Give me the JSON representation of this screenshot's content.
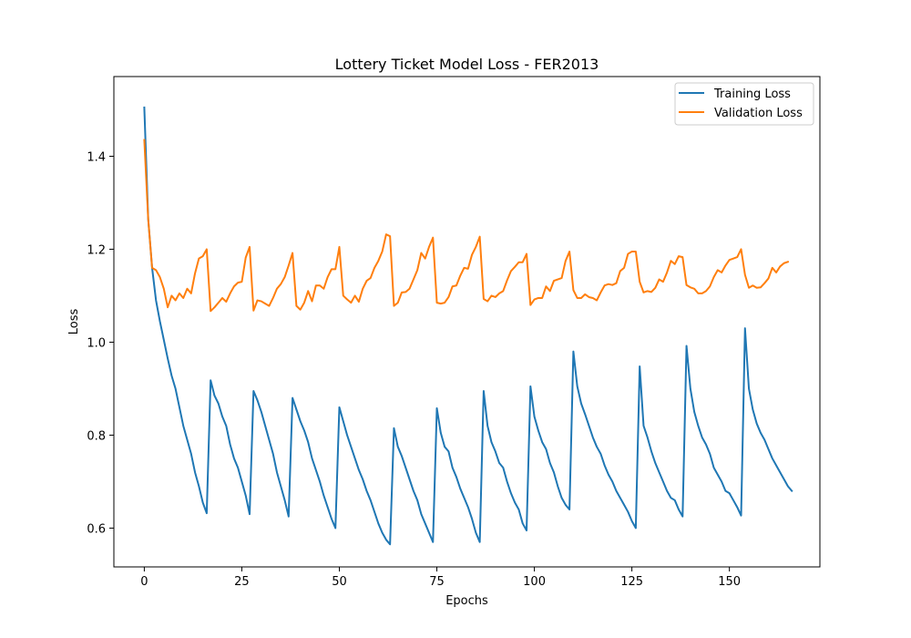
{
  "chart_data": {
    "type": "line",
    "title": "Lottery Ticket Model Loss - FER2013",
    "xlabel": "Epochs",
    "ylabel": "Loss",
    "xlim": [
      -7.8,
      173.2
    ],
    "ylim": [
      0.5165,
      1.5715
    ],
    "xticks": [
      0,
      25,
      50,
      75,
      100,
      125,
      150
    ],
    "xtick_labels": [
      "0",
      "25",
      "50",
      "75",
      "100",
      "125",
      "150"
    ],
    "yticks": [
      0.6,
      0.8,
      1.0,
      1.2,
      1.4
    ],
    "ytick_labels": [
      "0.6",
      "0.8",
      "1.0",
      "1.2",
      "1.4"
    ],
    "grid": false,
    "legend_position": "upper right",
    "series": [
      {
        "name": "Training Loss",
        "color": "#1f77b4",
        "values": [
          1.505,
          1.265,
          1.16,
          1.09,
          1.045,
          1.005,
          0.965,
          0.928,
          0.9,
          0.86,
          0.82,
          0.79,
          0.76,
          0.72,
          0.69,
          0.655,
          0.632,
          0.918,
          0.885,
          0.868,
          0.84,
          0.82,
          0.78,
          0.75,
          0.73,
          0.7,
          0.67,
          0.63,
          0.895,
          0.875,
          0.85,
          0.82,
          0.79,
          0.76,
          0.72,
          0.69,
          0.66,
          0.625,
          0.88,
          0.855,
          0.83,
          0.81,
          0.785,
          0.75,
          0.725,
          0.7,
          0.67,
          0.645,
          0.62,
          0.6,
          0.86,
          0.83,
          0.8,
          0.775,
          0.75,
          0.725,
          0.705,
          0.68,
          0.66,
          0.635,
          0.61,
          0.59,
          0.575,
          0.565,
          0.815,
          0.775,
          0.755,
          0.73,
          0.705,
          0.68,
          0.66,
          0.63,
          0.61,
          0.59,
          0.57,
          0.858,
          0.805,
          0.775,
          0.765,
          0.73,
          0.71,
          0.685,
          0.665,
          0.645,
          0.62,
          0.59,
          0.57,
          0.895,
          0.82,
          0.785,
          0.765,
          0.74,
          0.73,
          0.7,
          0.675,
          0.655,
          0.64,
          0.61,
          0.595,
          0.905,
          0.84,
          0.81,
          0.785,
          0.77,
          0.74,
          0.72,
          0.69,
          0.665,
          0.65,
          0.64,
          0.98,
          0.905,
          0.868,
          0.845,
          0.82,
          0.795,
          0.775,
          0.76,
          0.735,
          0.715,
          0.7,
          0.68,
          0.665,
          0.65,
          0.635,
          0.615,
          0.6,
          0.948,
          0.82,
          0.795,
          0.765,
          0.74,
          0.72,
          0.7,
          0.68,
          0.665,
          0.66,
          0.64,
          0.625,
          0.992,
          0.9,
          0.85,
          0.82,
          0.795,
          0.78,
          0.76,
          0.73,
          0.715,
          0.7,
          0.68,
          0.675,
          0.66,
          0.645,
          0.627,
          1.03,
          0.9,
          0.855,
          0.825,
          0.805,
          0.79,
          0.77,
          0.75,
          0.735,
          0.72,
          0.705,
          0.69,
          0.68
        ]
      },
      {
        "name": "Validation Loss",
        "color": "#ff7f0e",
        "values": [
          1.435,
          1.265,
          1.16,
          1.155,
          1.14,
          1.115,
          1.075,
          1.1,
          1.09,
          1.105,
          1.095,
          1.115,
          1.105,
          1.148,
          1.18,
          1.185,
          1.2,
          1.067,
          1.075,
          1.085,
          1.095,
          1.087,
          1.105,
          1.12,
          1.128,
          1.13,
          1.182,
          1.205,
          1.068,
          1.09,
          1.088,
          1.083,
          1.078,
          1.095,
          1.115,
          1.125,
          1.14,
          1.165,
          1.192,
          1.078,
          1.07,
          1.085,
          1.11,
          1.088,
          1.122,
          1.122,
          1.115,
          1.14,
          1.157,
          1.157,
          1.205,
          1.1,
          1.092,
          1.085,
          1.1,
          1.087,
          1.115,
          1.132,
          1.138,
          1.16,
          1.175,
          1.195,
          1.232,
          1.228,
          1.078,
          1.085,
          1.107,
          1.108,
          1.115,
          1.135,
          1.155,
          1.192,
          1.18,
          1.205,
          1.225,
          1.085,
          1.083,
          1.085,
          1.097,
          1.12,
          1.122,
          1.143,
          1.16,
          1.158,
          1.188,
          1.205,
          1.227,
          1.093,
          1.088,
          1.1,
          1.097,
          1.105,
          1.11,
          1.133,
          1.153,
          1.162,
          1.172,
          1.172,
          1.19,
          1.08,
          1.092,
          1.095,
          1.095,
          1.12,
          1.11,
          1.132,
          1.135,
          1.138,
          1.175,
          1.195,
          1.112,
          1.095,
          1.095,
          1.103,
          1.097,
          1.095,
          1.09,
          1.107,
          1.122,
          1.125,
          1.123,
          1.127,
          1.153,
          1.16,
          1.19,
          1.195,
          1.195,
          1.13,
          1.107,
          1.11,
          1.108,
          1.117,
          1.135,
          1.13,
          1.15,
          1.175,
          1.168,
          1.185,
          1.183,
          1.123,
          1.118,
          1.115,
          1.105,
          1.105,
          1.11,
          1.12,
          1.14,
          1.155,
          1.15,
          1.165,
          1.177,
          1.18,
          1.183,
          1.2,
          1.145,
          1.117,
          1.122,
          1.117,
          1.118,
          1.127,
          1.137,
          1.16,
          1.15,
          1.163,
          1.17,
          1.173
        ]
      }
    ]
  }
}
